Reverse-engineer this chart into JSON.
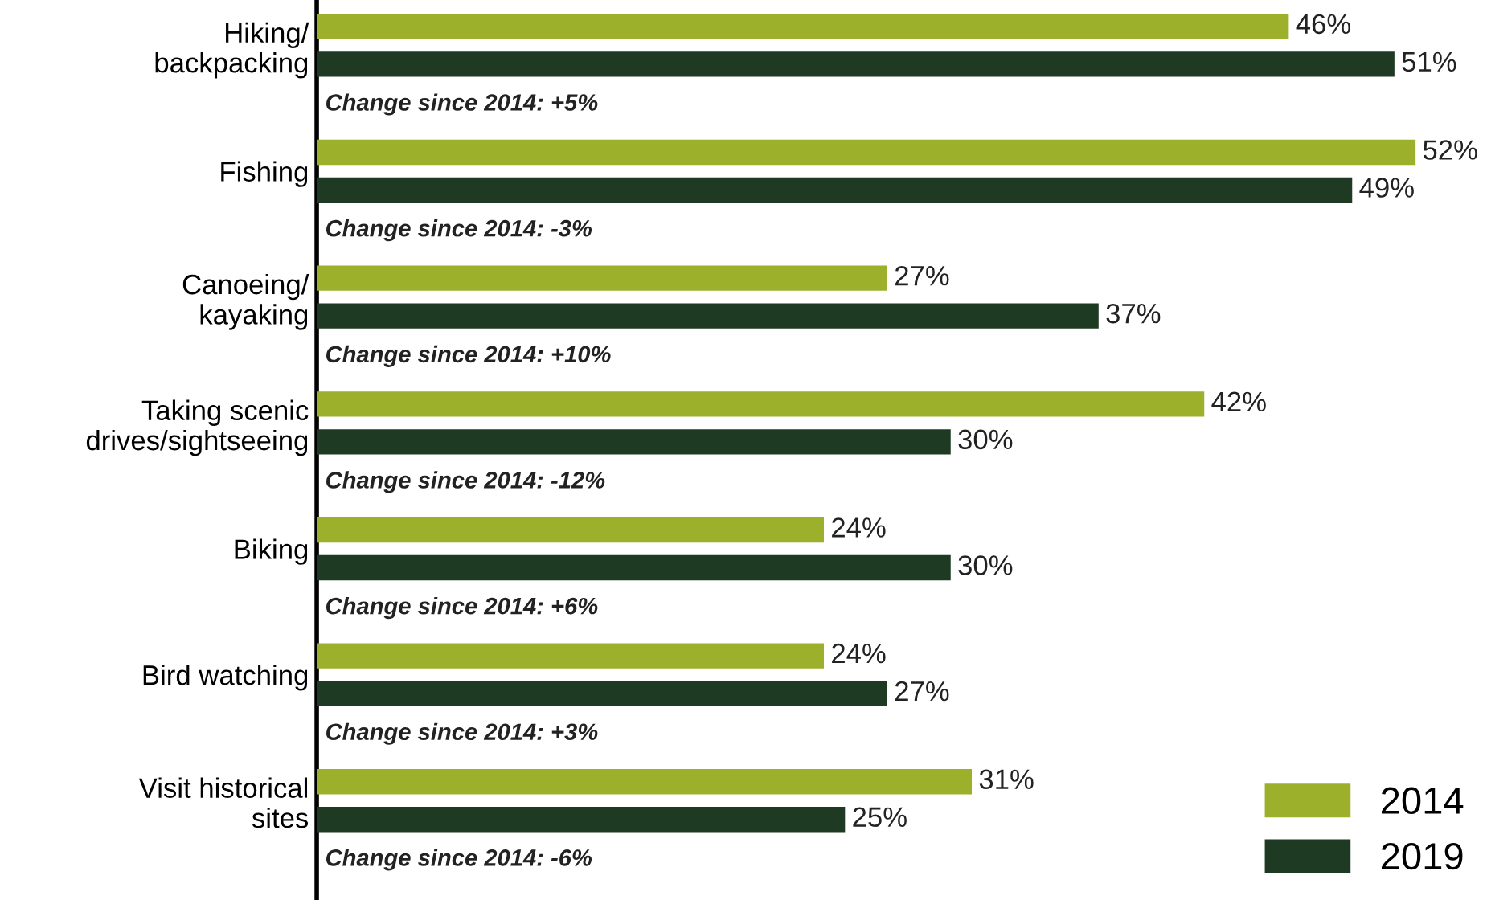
{
  "chart_data": {
    "type": "bar",
    "orientation": "horizontal",
    "categories": [
      "Hiking/\nbackpacking",
      "Fishing",
      "Canoeing/\nkayaking",
      "Taking scenic\ndrives/sightseeing",
      "Biking",
      "Bird watching",
      "Visit historical\nsites"
    ],
    "series": [
      {
        "name": "2014",
        "color": "#9cb02c",
        "values": [
          46,
          52,
          27,
          42,
          24,
          24,
          31
        ],
        "value_labels": [
          "46%",
          "52%",
          "27%",
          "42%",
          "24%",
          "24%",
          "31%"
        ]
      },
      {
        "name": "2019",
        "color": "#1e3a22",
        "values": [
          51,
          49,
          37,
          30,
          30,
          27,
          25
        ],
        "value_labels": [
          "51%",
          "49%",
          "37%",
          "30%",
          "30%",
          "27%",
          "25%"
        ]
      }
    ],
    "annotations": [
      "Change since 2014: +5%",
      "Change since 2014: -3%",
      "Change since 2014: +10%",
      "Change since 2014: -12%",
      "Change since 2014: +6%",
      "Change since 2014: +3%",
      "Change since 2014: -6%"
    ],
    "tick_labels": "y",
    "legend": "bottom right"
  }
}
